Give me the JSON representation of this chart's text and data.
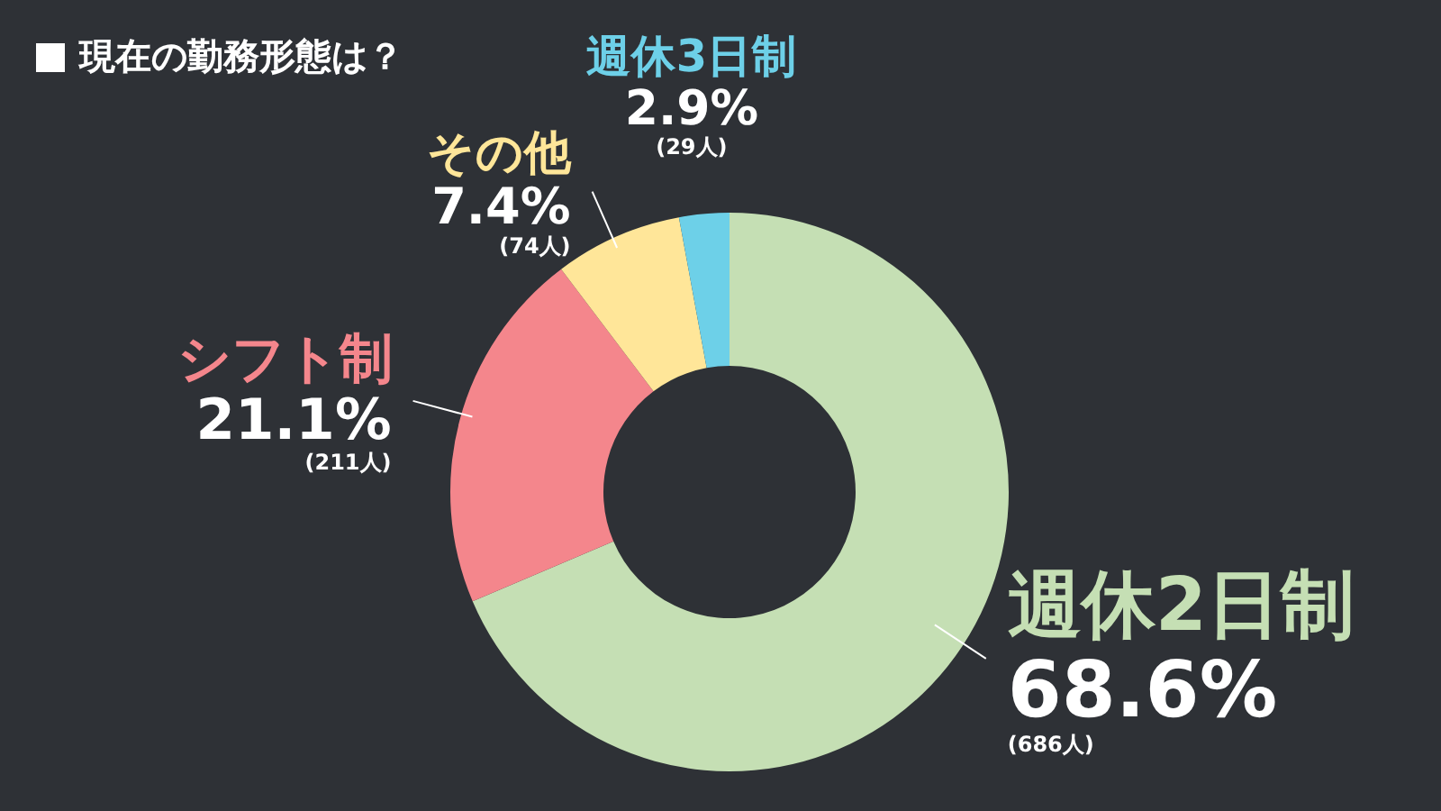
{
  "chart_data": {
    "type": "donut",
    "title": "現在の勤務形態は？",
    "categories": [
      "週休2日制",
      "シフト制",
      "その他",
      "週休3日制"
    ],
    "values": [
      68.6,
      21.1,
      7.4,
      2.9
    ],
    "colors": [
      "#c5dfb4",
      "#f4868c",
      "#ffe699",
      "#6dd0e8"
    ],
    "value_labels": [
      "68.6%\n(686人)",
      "21.1%\n(211人)",
      "7.4%\n(74人)",
      "2.9%\n(29人)"
    ],
    "legend": false
  }
}
